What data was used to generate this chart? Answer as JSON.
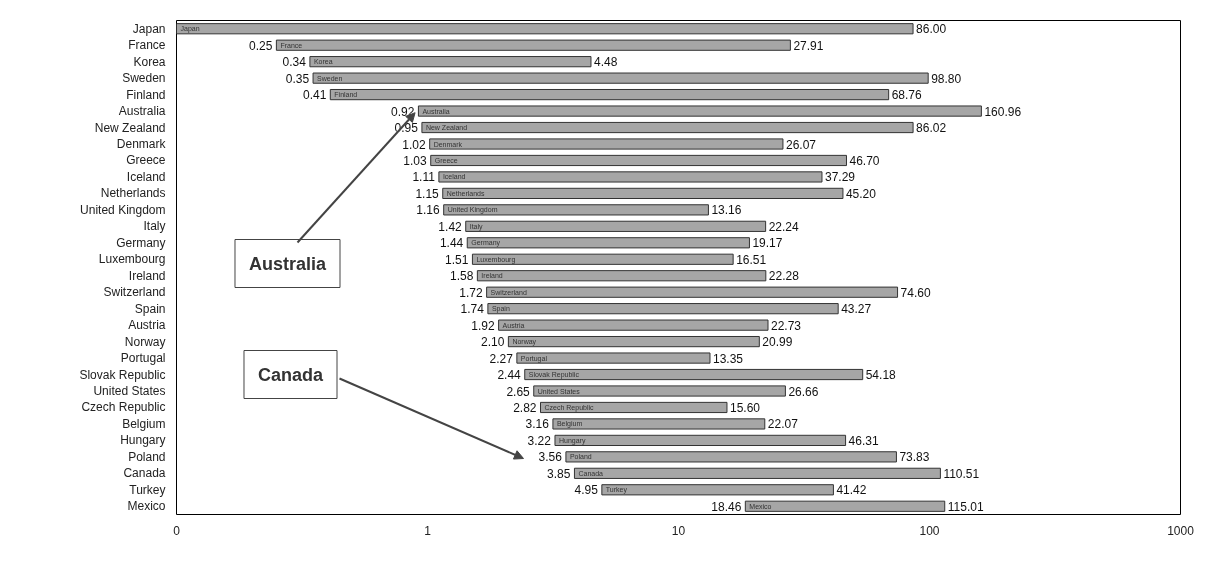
{
  "chart_data": {
    "type": "bar",
    "orientation": "horizontal",
    "log": "x",
    "categories": [
      "Japan",
      "France",
      "Korea",
      "Sweden",
      "Finland",
      "Australia",
      "New Zealand",
      "Denmark",
      "Greece",
      "Iceland",
      "Netherlands",
      "United Kingdom",
      "Italy",
      "Germany",
      "Luxembourg",
      "Ireland",
      "Switzerland",
      "Spain",
      "Austria",
      "Norway",
      "Portugal",
      "Slovak Republic",
      "United States",
      "Czech Republic",
      "Belgium",
      "Hungary",
      "Poland",
      "Canada",
      "Turkey",
      "Mexico"
    ],
    "base": [
      0.1,
      0.25,
      0.34,
      0.35,
      0.41,
      0.92,
      0.95,
      1.02,
      1.03,
      1.11,
      1.15,
      1.16,
      1.42,
      1.44,
      1.51,
      1.58,
      1.72,
      1.74,
      1.92,
      2.1,
      2.27,
      2.44,
      2.65,
      2.82,
      3.16,
      3.22,
      3.56,
      3.85,
      4.95,
      18.46
    ],
    "values": [
      85.9,
      27.66,
      4.14,
      98.45,
      68.35,
      160.04,
      85.07,
      25.05,
      45.67,
      36.18,
      44.05,
      12.0,
      20.82,
      17.73,
      15.0,
      20.7,
      72.88,
      41.53,
      20.81,
      18.89,
      11.08,
      51.74,
      24.01,
      12.78,
      18.91,
      43.09,
      70.27,
      106.66,
      36.47,
      96.55
    ],
    "value_labels": [
      "86.00",
      "27.91",
      "4.48",
      "98.80",
      "68.76",
      "160.96",
      "86.02",
      "26.07",
      "46.70",
      "37.29",
      "45.20",
      "13.16",
      "22.24",
      "19.17",
      "16.51",
      "22.28",
      "74.60",
      "43.27",
      "22.73",
      "20.99",
      "13.35",
      "54.18",
      "26.66",
      "15.60",
      "22.07",
      "46.31",
      "73.83",
      "110.51",
      "41.42",
      "115.01"
    ],
    "color": "#a6a6a6",
    "xlim": [
      0.1,
      1000
    ],
    "xticks": [
      {
        "value": 0.1,
        "label": "0"
      },
      1,
      10,
      100,
      1000
    ],
    "grid": false,
    "annotations": [
      {
        "text": "0.25",
        "x": 0.25,
        "y": "France"
      },
      {
        "text": "0.34",
        "x": 0.34,
        "y": "Korea"
      },
      {
        "text": "0.35",
        "x": 0.35,
        "y": "Sweden"
      },
      {
        "text": "0.41",
        "x": 0.41,
        "y": "Finland"
      },
      {
        "text": "0.92",
        "x": 0.92,
        "y": "Australia"
      },
      {
        "text": "0.95",
        "x": 0.95,
        "y": "New Zealand"
      },
      {
        "text": "1.02",
        "x": 1.02,
        "y": "Denmark"
      },
      {
        "text": "1.03",
        "x": 1.03,
        "y": "Greece"
      },
      {
        "text": "1.11",
        "x": 1.11,
        "y": "Iceland"
      },
      {
        "text": "1.15",
        "x": 1.15,
        "y": "Netherlands"
      },
      {
        "text": "1.16",
        "x": 1.16,
        "y": "United Kingdom"
      },
      {
        "text": "1.42",
        "x": 1.42,
        "y": "Italy"
      },
      {
        "text": "1.44",
        "x": 1.44,
        "y": "Germany"
      },
      {
        "text": "1.51",
        "x": 1.51,
        "y": "Luxembourg"
      },
      {
        "text": "1.58",
        "x": 1.58,
        "y": "Ireland"
      },
      {
        "text": "1.72",
        "x": 1.72,
        "y": "Switzerland"
      },
      {
        "text": "1.74",
        "x": 1.74,
        "y": "Spain"
      },
      {
        "text": "1.92",
        "x": 1.92,
        "y": "Austria"
      },
      {
        "text": "2.10",
        "x": 2.1,
        "y": "Norway"
      },
      {
        "text": "2.27",
        "x": 2.27,
        "y": "Portugal"
      },
      {
        "text": "2.44",
        "x": 2.44,
        "y": "Slovak Republic"
      },
      {
        "text": "2.65",
        "x": 2.65,
        "y": "United States"
      },
      {
        "text": "2.82",
        "x": 2.82,
        "y": "Czech Republic"
      },
      {
        "text": "3.16",
        "x": 3.16,
        "y": "Belgium"
      },
      {
        "text": "3.22",
        "x": 3.22,
        "y": "Hungary"
      },
      {
        "text": "3.56",
        "x": 3.56,
        "y": "Poland"
      },
      {
        "text": "3.85",
        "x": 3.85,
        "y": "Canada"
      },
      {
        "text": "4.95",
        "x": 4.95,
        "y": "Turkey"
      },
      {
        "text": "18.46",
        "x": 18.46,
        "y": "Mexico"
      },
      {
        "text": "Australia",
        "x": 0.92,
        "y": "Australia"
      },
      "Canada"
    ]
  }
}
